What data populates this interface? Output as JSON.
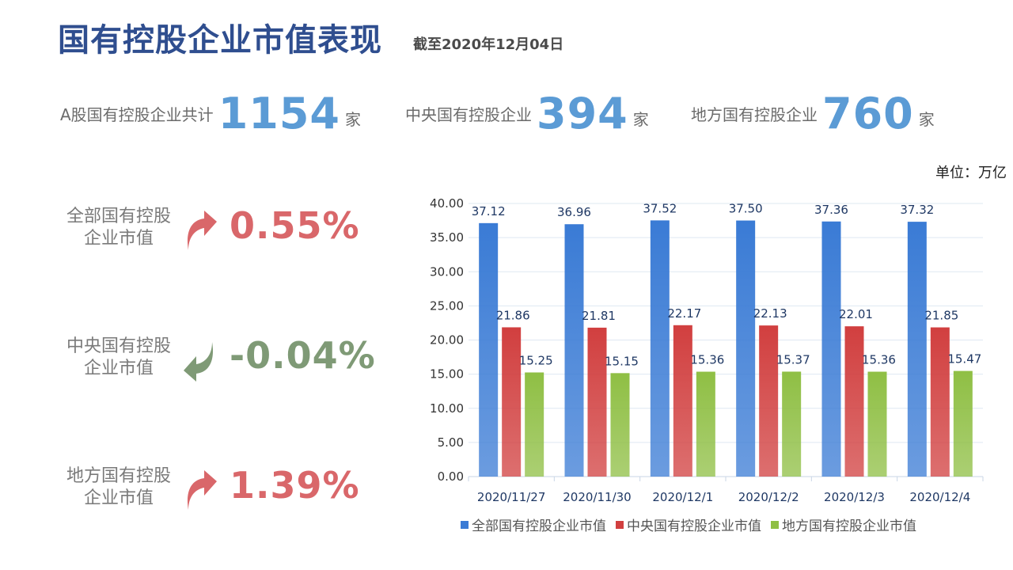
{
  "header": {
    "title": "国有控股企业市值表现",
    "subtitle": "截至2020年12月04日"
  },
  "stats": [
    {
      "label": "A股国有控股企业共计",
      "value": "1154",
      "unit": "家"
    },
    {
      "label": "中央国有控股企业",
      "value": "394",
      "unit": "家"
    },
    {
      "label": "地方国有控股企业",
      "value": "760",
      "unit": "家"
    }
  ],
  "unit_note": "单位：万亿",
  "changes": [
    {
      "label_line1": "全部国有控股",
      "label_line2": "企业市值",
      "value": "0.55%",
      "direction": "up",
      "color": "#D9676A",
      "icon": "arrow-up-icon"
    },
    {
      "label_line1": "中央国有控股",
      "label_line2": "企业市值",
      "value": "-0.04%",
      "direction": "down",
      "color": "#7F9A76",
      "icon": "arrow-down-icon"
    },
    {
      "label_line1": "地方国有控股",
      "label_line2": "企业市值",
      "value": "1.39%",
      "direction": "up",
      "color": "#D9676A",
      "icon": "arrow-up-icon"
    }
  ],
  "chart_data": {
    "type": "bar",
    "categories": [
      "2020/11/27",
      "2020/11/30",
      "2020/12/1",
      "2020/12/2",
      "2020/12/3",
      "2020/12/4"
    ],
    "series": [
      {
        "name": "全部国有控股企业市值",
        "values": [
          37.12,
          36.96,
          37.52,
          37.5,
          37.36,
          37.32
        ],
        "color": "#3A7BD5"
      },
      {
        "name": "中央国有控股企业市值",
        "values": [
          21.86,
          21.81,
          22.17,
          22.13,
          22.01,
          21.85
        ],
        "color": "#D13F3F"
      },
      {
        "name": "地方国有控股企业市值",
        "values": [
          15.25,
          15.15,
          15.36,
          15.37,
          15.36,
          15.47
        ],
        "color": "#8FBF44"
      }
    ],
    "ylim": [
      0,
      40
    ],
    "yticks": [
      "0.00",
      "5.00",
      "10.00",
      "15.00",
      "20.00",
      "25.00",
      "30.00",
      "35.00",
      "40.00"
    ],
    "grid": true,
    "legend_position": "bottom"
  }
}
